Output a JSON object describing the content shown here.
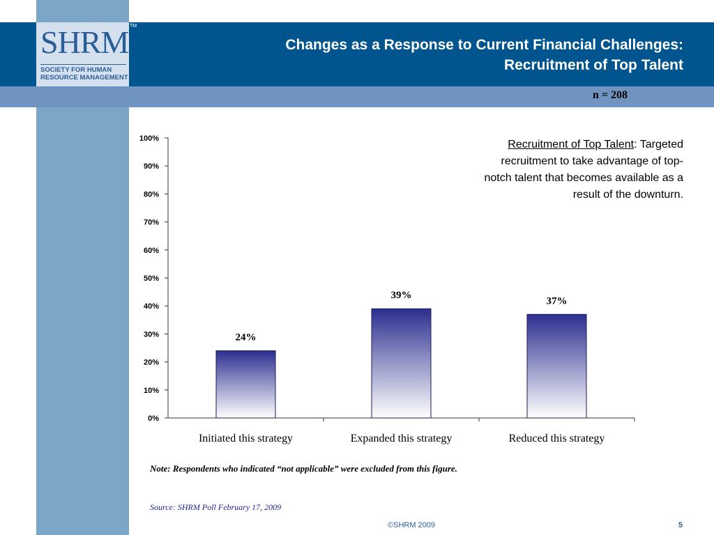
{
  "header": {
    "logo_text": "SHRM",
    "logo_tm": "TM",
    "logo_sub_line1": "SOCIETY FOR HUMAN",
    "logo_sub_line2": "RESOURCE MANAGEMENT",
    "title_line1": "Changes as a Response to Current Financial Challenges:",
    "title_line2": "Recruitment of Top Talent"
  },
  "sample_size": "n = 208",
  "annotation": {
    "term": "Recruitment of Top Talent",
    "colon": ":",
    "description": "Targeted recruitment to take advantage of top-notch talent that becomes available as a result of the downturn."
  },
  "chart_data": {
    "type": "bar",
    "categories": [
      "Initiated this strategy",
      "Expanded this strategy",
      "Reduced this strategy"
    ],
    "values": [
      24,
      39,
      37
    ],
    "value_labels": [
      "24%",
      "39%",
      "37%"
    ],
    "yticks": [
      "0%",
      "10%",
      "20%",
      "30%",
      "40%",
      "50%",
      "60%",
      "70%",
      "80%",
      "90%",
      "100%"
    ],
    "ylim": [
      0,
      100
    ],
    "grid": false,
    "legend": "none",
    "bar_gradient": [
      "#2b2f8f",
      "#ffffff"
    ]
  },
  "note": "Note: Respondents who indicated “not applicable” were excluded from this figure.",
  "source": "Source: SHRM Poll February 17, 2009",
  "footer": {
    "copyright": "©SHRM 2009",
    "page": "5"
  }
}
